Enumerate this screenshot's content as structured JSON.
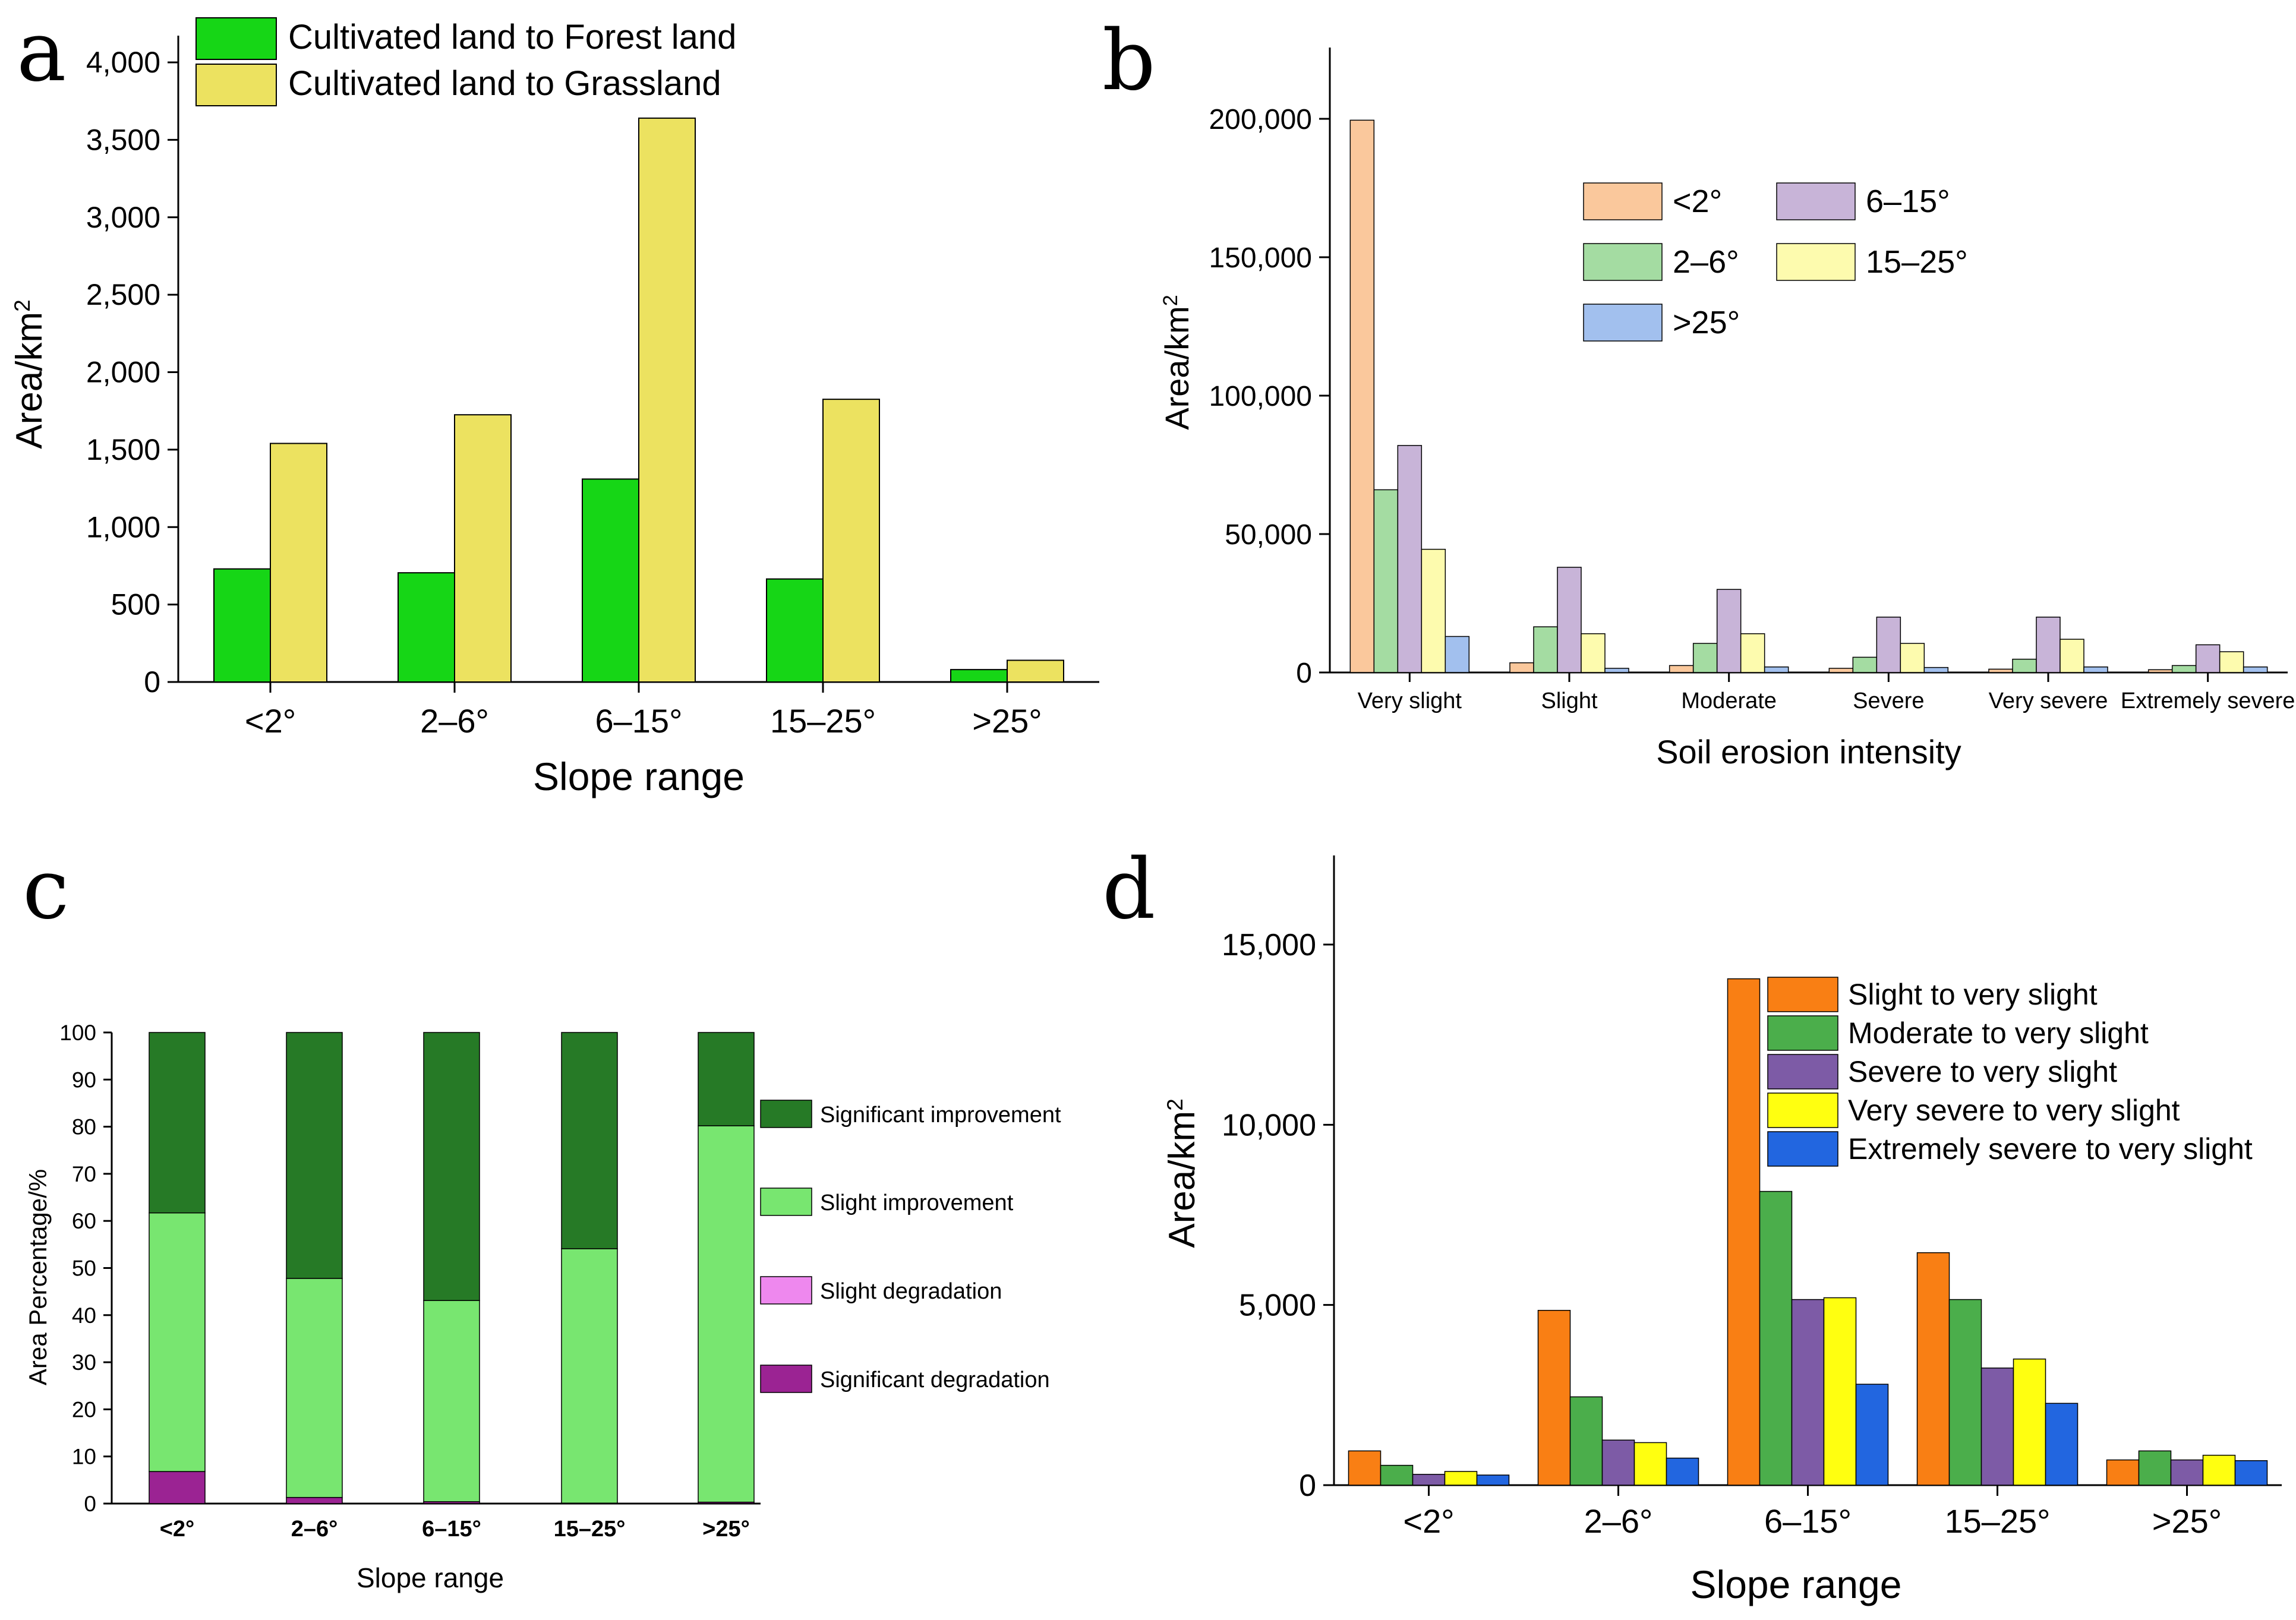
{
  "chart_data": [
    {
      "panel": "a",
      "type": "bar",
      "categories": [
        "<2°",
        "2–6°",
        "6–15°",
        "15–25°",
        ">25°"
      ],
      "series": [
        {
          "name": "Cultivated land to Forest land",
          "color": "#16d616",
          "values": [
            730,
            705,
            1310,
            665,
            80
          ]
        },
        {
          "name": "Cultivated land to Grassland",
          "color": "#ece260",
          "values": [
            1540,
            1725,
            3640,
            1825,
            140
          ]
        }
      ],
      "xlabel": "Slope range",
      "ylabel": "Area/km",
      "ylabel_sup": "2",
      "ylim": [
        0,
        4000
      ],
      "yticks": [
        0,
        500,
        1000,
        1500,
        2000,
        2500,
        3000,
        3500,
        4000
      ],
      "ytick_labels": [
        "0",
        "500",
        "1,000",
        "1,500",
        "2,000",
        "2,500",
        "3,000",
        "3,500",
        "4,000"
      ],
      "legend": "top-left"
    },
    {
      "panel": "b",
      "type": "bar",
      "categories": [
        "Very slight",
        "Slight",
        "Moderate",
        "Severe",
        "Very severe",
        "Extremely severe"
      ],
      "series": [
        {
          "name": "<2°",
          "color": "#fac89c",
          "values": [
            199500,
            3500,
            2500,
            1500,
            1200,
            1000
          ]
        },
        {
          "name": "2–6°",
          "color": "#a4dca2",
          "values": [
            66000,
            16500,
            10500,
            5500,
            4800,
            2500
          ]
        },
        {
          "name": "6–15°",
          "color": "#c8b4d8",
          "values": [
            82000,
            38000,
            30000,
            20000,
            20000,
            10000
          ]
        },
        {
          "name": "15–25°",
          "color": "#fdfbae",
          "values": [
            44500,
            14000,
            14000,
            10500,
            12000,
            7500
          ]
        },
        {
          "name": ">25°",
          "color": "#a2c0ee",
          "values": [
            13000,
            1500,
            2000,
            1800,
            2000,
            2000
          ]
        }
      ],
      "xlabel": "Soil erosion intensity",
      "ylabel": "Area/km",
      "ylabel_sup": "2",
      "ylim": [
        0,
        225000
      ],
      "yticks": [
        0,
        50000,
        100000,
        150000,
        200000
      ],
      "ytick_labels": [
        "0",
        "50,000",
        "100,000",
        "150,000",
        "200,000"
      ],
      "legend": "top-right"
    },
    {
      "panel": "c",
      "type": "bar",
      "stacked": true,
      "categories": [
        "<2°",
        "2–6°",
        "6–15°",
        "15–25°",
        ">25°"
      ],
      "series": [
        {
          "name": "Significant degradation",
          "color": "#9b2393",
          "values": [
            6.8,
            1.3,
            0.4,
            0.1,
            0.3
          ]
        },
        {
          "name": "Slight degradation",
          "color": "#ee88ee",
          "values": [
            0,
            0,
            0,
            0,
            0
          ]
        },
        {
          "name": "Slight improvement",
          "color": "#78e670",
          "values": [
            54.9,
            46.5,
            42.7,
            54.0,
            79.9
          ]
        },
        {
          "name": "Significant improvement",
          "color": "#267a26",
          "values": [
            38.3,
            52.2,
            56.9,
            45.9,
            19.8
          ]
        }
      ],
      "xlabel": "Slope range",
      "ylabel": "Area Percentage/%",
      "ylim": [
        0,
        100
      ],
      "yticks": [
        0,
        10,
        20,
        30,
        40,
        50,
        60,
        70,
        80,
        90,
        100
      ],
      "ytick_labels": [
        "0",
        "10",
        "20",
        "30",
        "40",
        "50",
        "60",
        "70",
        "80",
        "90",
        "100"
      ],
      "legend": "right"
    },
    {
      "panel": "d",
      "type": "bar",
      "categories": [
        "<2°",
        "2–6°",
        "6–15°",
        "15–25°",
        ">25°"
      ],
      "series": [
        {
          "name": "Slight to very slight",
          "color": "#f97f14",
          "values": [
            950,
            4850,
            14050,
            6450,
            700
          ]
        },
        {
          "name": "Moderate to very slight",
          "color": "#4bae4b",
          "values": [
            550,
            2450,
            8150,
            5150,
            950
          ]
        },
        {
          "name": "Severe to very slight",
          "color": "#7d5ba6",
          "values": [
            300,
            1250,
            5150,
            3250,
            700
          ]
        },
        {
          "name": "Very severe to very slight",
          "color": "#ffff10",
          "values": [
            380,
            1180,
            5200,
            3500,
            830
          ]
        },
        {
          "name": "Extremely severe to very slight",
          "color": "#2266e0",
          "values": [
            280,
            750,
            2800,
            2270,
            680
          ]
        }
      ],
      "xlabel": "Slope range",
      "ylabel": "Area/km",
      "ylabel_sup": "2",
      "ylim": [
        0,
        17500
      ],
      "yticks": [
        0,
        5000,
        10000,
        15000
      ],
      "ytick_labels": [
        "0",
        "5,000",
        "10,000",
        "15,000"
      ],
      "legend": "top-right"
    }
  ],
  "panels": {
    "a": {
      "letter": "a"
    },
    "b": {
      "letter": "b"
    },
    "c": {
      "letter": "c"
    },
    "d": {
      "letter": "d"
    }
  }
}
